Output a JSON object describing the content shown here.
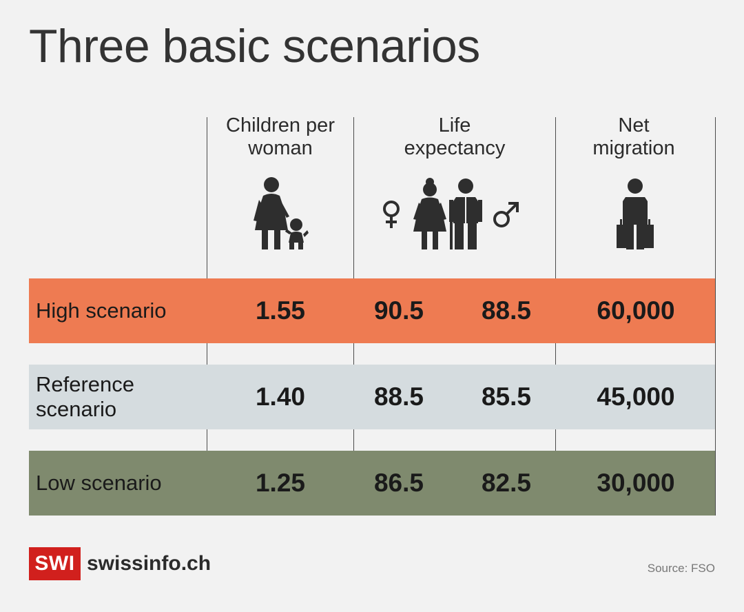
{
  "title": "Three basic scenarios",
  "columns": {
    "children": "Children per woman",
    "life": "Life expectancy",
    "migration": "Net migration"
  },
  "chart_data": {
    "type": "table",
    "title": "Three basic scenarios",
    "columns": [
      "Children per woman",
      "Life expectancy (female)",
      "Life expectancy (male)",
      "Net migration"
    ],
    "rows": [
      {
        "label": "High scenario",
        "children": "1.55",
        "life_female": "90.5",
        "life_male": "88.5",
        "migration": "60,000",
        "color": "#ee7b52"
      },
      {
        "label": "Reference scenario",
        "children": "1.40",
        "life_female": "88.5",
        "life_male": "85.5",
        "migration": "45,000",
        "color": "#d5dcdf"
      },
      {
        "label": "Low scenario",
        "children": "1.25",
        "life_female": "86.5",
        "life_male": "82.5",
        "migration": "30,000",
        "color": "#7f8a6e"
      }
    ]
  },
  "icons": {
    "children": "mother-child-icon",
    "female_symbol": "female-symbol-icon",
    "elderly_couple": "elderly-couple-icon",
    "male_symbol": "male-symbol-icon",
    "migrant": "person-with-luggage-icon"
  },
  "footer": {
    "logo_text": "SWI",
    "brand": "swissinfo.ch",
    "source": "Source: FSO",
    "logo_color": "#d1201d"
  }
}
